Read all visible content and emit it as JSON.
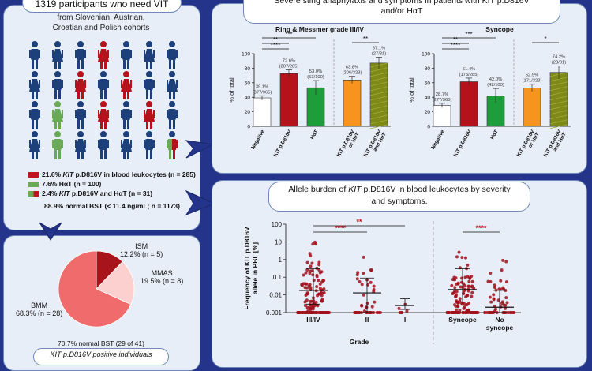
{
  "cohort": {
    "header_title": "1319 participants who need VIT",
    "source_line1": "from Slovenian, Austrian,",
    "source_line2": "Croatian and Polish cohorts",
    "legend": [
      {
        "pre": "21.6% ",
        "kit": "KIT",
        "post": " p.D816V in blood leukocytes  (n = 285)",
        "color": "#c0161f"
      },
      {
        "pre": "7.6% HαT (n = 100)",
        "kit": "",
        "post": "",
        "color": "#6aaa55"
      },
      {
        "pre": "2.4% ",
        "kit": "KIT",
        "post": " p.D816V and HαT (n = 31)",
        "color": "#c0161f"
      }
    ],
    "bst_line": "88.9% normal BST (< 11.4 ng/mL; n = 1173)"
  },
  "severity": {
    "header_line1": "Severe sting anaphylaxis and symptoms in patients with KIT p.D816V",
    "header_line2": "and/or HαT"
  },
  "pie": {
    "labels": [
      {
        "name": "ISM",
        "value": "12.2% (n = 5)"
      },
      {
        "name": "MMAS",
        "value": "19.5% (n = 8)"
      },
      {
        "name": "BMM",
        "value": "68.3% (n = 28)"
      }
    ],
    "bst_line": "70.7%  normal BST (29 of 41)",
    "bottom_header": "KIT p.D816V positive individuals"
  },
  "allele": {
    "header_line1_pre": "Allele burden of ",
    "header_kit": "KIT",
    "header_line1_post": " p.D816V in blood leukocytes by severity",
    "header_line2": "and symptoms."
  },
  "chart_data": [
    {
      "type": "bar",
      "title": "Ring & Messmer grade III/IV",
      "ylabel": "% of total",
      "ylim": [
        0,
        100
      ],
      "yticks": [
        0,
        20,
        40,
        60,
        80,
        100
      ],
      "categories": [
        "Negative",
        "KIT p.D816V",
        "HαT",
        "KIT p.D816V or HαT",
        "KIT p.D816V and HαT"
      ],
      "values": [
        39.1,
        72.6,
        53.0,
        63.8,
        87.1
      ],
      "errors": [
        3,
        5,
        10,
        5,
        8
      ],
      "counts": [
        "(377/965)",
        "(207/285)",
        "(53/100)",
        "(206/323)",
        "(27/31)"
      ],
      "colors": [
        "#ffffff",
        "#b5121b",
        "#1e9e3a",
        "#f7941d",
        "#7d8a17"
      ],
      "significance": [
        {
          "from": 0,
          "to": 2,
          "label": "***"
        },
        {
          "from": 0,
          "to": 1,
          "label": "**"
        },
        {
          "from": 0,
          "to": 1,
          "label": "****"
        },
        {
          "from": 3,
          "to": 4,
          "label": "**"
        }
      ]
    },
    {
      "type": "bar",
      "title": "Syncope",
      "ylabel": "% of total",
      "ylim": [
        0,
        100
      ],
      "yticks": [
        0,
        20,
        40,
        60,
        80,
        100
      ],
      "categories": [
        "Negative",
        "KIT p.D816V",
        "HαT",
        "KIT p.D816V or HαT",
        "KIT p.D816V and HαT"
      ],
      "values": [
        28.7,
        61.4,
        42.0,
        52.9,
        74.2
      ],
      "errors": [
        3,
        5,
        10,
        5,
        9
      ],
      "counts": [
        "(277/965)",
        "(175/285)",
        "(42/100)",
        "(171/323)",
        "(23/31)"
      ],
      "colors": [
        "#ffffff",
        "#b5121b",
        "#1e9e3a",
        "#f7941d",
        "#7d8a17"
      ],
      "significance": [
        {
          "from": 0,
          "to": 2,
          "label": "***"
        },
        {
          "from": 0,
          "to": 1,
          "label": "**"
        },
        {
          "from": 0,
          "to": 1,
          "label": "****"
        },
        {
          "from": 3,
          "to": 4,
          "label": "*"
        }
      ]
    },
    {
      "type": "pie",
      "slices": [
        {
          "label": "ISM",
          "percent": 12.2,
          "n": 5,
          "color": "#a8141b"
        },
        {
          "label": "MMAS",
          "percent": 19.5,
          "n": 8,
          "color": "#fbd0cf"
        },
        {
          "label": "BMM",
          "percent": 68.3,
          "n": 28,
          "color": "#f06b6b"
        }
      ]
    },
    {
      "type": "scatter",
      "ylabel": "Frequency of KIT p.D816V allele in PBL [%]",
      "yscale": "log",
      "ylim": [
        0.001,
        100
      ],
      "yticks": [
        "100",
        "10",
        "1",
        "0.1",
        "0.01",
        "0.001"
      ],
      "xlabel": "Grade",
      "categories": [
        "III/IV",
        "II",
        "I",
        "Syncope",
        "No syncope"
      ],
      "medians": [
        0.018,
        0.013,
        0.0025,
        0.02,
        0.002
      ],
      "iqr_low": [
        0.003,
        0.001,
        0.0015,
        0.004,
        0.001
      ],
      "iqr_high": [
        0.3,
        0.09,
        0.006,
        0.3,
        0.018
      ],
      "max_values": [
        10,
        1.5,
        0.006,
        3,
        1.2
      ],
      "point_color": "#a0101b",
      "significance": [
        {
          "from": 0,
          "to": 2,
          "label": "**"
        },
        {
          "from": 0,
          "to": 1,
          "label": "****"
        },
        {
          "from": 3,
          "to": 4,
          "label": "****"
        }
      ]
    }
  ]
}
